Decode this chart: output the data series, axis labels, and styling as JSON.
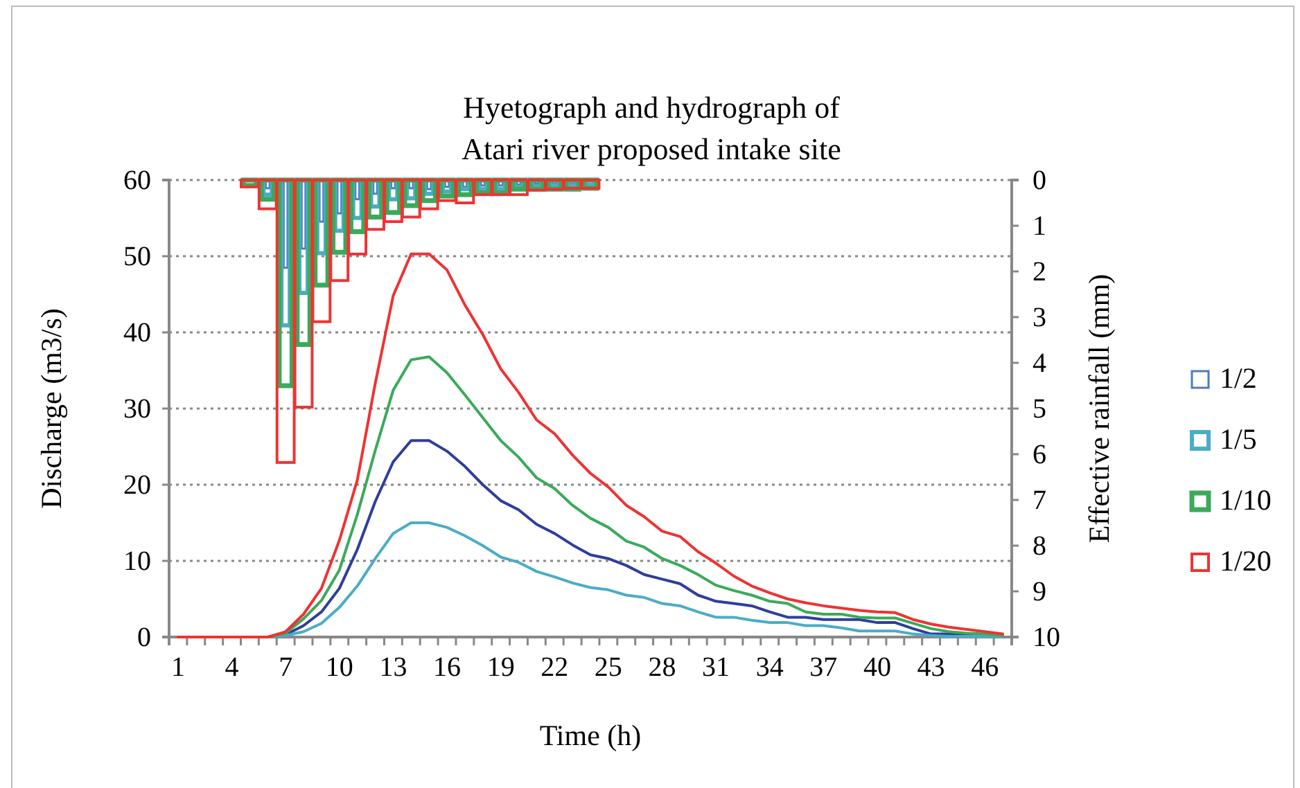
{
  "chart_data": {
    "type": "line",
    "title": "Hyetograph and hydrograph of\nAtari river proposed intake site",
    "xlabel": "Time (h)",
    "ylabel": "Discharge (m3/s)",
    "y2label": "Effective rainfall (mm)",
    "categories": [
      "1",
      null,
      null,
      "4",
      null,
      null,
      "7",
      null,
      null,
      "10",
      null,
      null,
      "13",
      null,
      null,
      "16",
      null,
      null,
      "19",
      null,
      null,
      "22",
      null,
      null,
      "25",
      null,
      null,
      "28",
      null,
      null,
      "31",
      null,
      null,
      "34",
      null,
      null,
      "37",
      null,
      null,
      "40",
      null,
      null,
      "43",
      null,
      null,
      "46",
      null
    ],
    "ylim": [
      0,
      60
    ],
    "yticks": [
      0,
      10,
      20,
      30,
      40,
      50,
      60
    ],
    "y2lim": [
      10,
      0
    ],
    "y2ticks": [
      0,
      1,
      2,
      3,
      4,
      5,
      6,
      7,
      8,
      9,
      10
    ],
    "grid": "y",
    "legend": "right",
    "marker": "none",
    "line_style": "solid",
    "series": [
      {
        "type": "bar",
        "axis": "y2",
        "name": "1/2",
        "color": "#4f7bbf",
        "values": [
          null,
          null,
          null,
          null,
          null,
          0.18,
          1.92,
          1.5,
          0.91,
          0.73,
          0.42,
          0.3,
          0.18,
          0.18,
          0.2,
          0.15,
          0.15,
          0.12,
          0.12,
          0.1,
          0.08,
          0.08,
          0.08,
          null,
          null,
          null,
          null,
          null,
          null,
          null,
          null,
          null,
          null,
          null,
          null,
          null,
          null,
          null,
          null,
          null,
          null,
          null,
          null,
          null,
          null,
          null,
          null
        ]
      },
      {
        "type": "bar",
        "axis": "y2",
        "name": "1/5",
        "color": "#4bacc6",
        "values": [
          null,
          null,
          null,
          null,
          null,
          0.32,
          3.18,
          2.47,
          1.6,
          1.11,
          0.83,
          0.58,
          0.42,
          0.4,
          0.3,
          0.25,
          0.2,
          0.2,
          0.2,
          0.15,
          0.15,
          0.12,
          0.12,
          0.1,
          null,
          null,
          null,
          null,
          null,
          null,
          null,
          null,
          null,
          null,
          null,
          null,
          null,
          null,
          null,
          null,
          null,
          null,
          null,
          null,
          null,
          null,
          null
        ]
      },
      {
        "type": "bar",
        "axis": "y2",
        "name": "1/10",
        "color": "#3aaa5a",
        "values": [
          null,
          null,
          null,
          null,
          0.12,
          0.42,
          4.5,
          3.6,
          2.3,
          1.58,
          1.13,
          0.81,
          0.71,
          0.56,
          0.45,
          0.35,
          0.32,
          0.28,
          0.28,
          0.2,
          0.2,
          0.2,
          0.2,
          0.18,
          null,
          null,
          null,
          null,
          null,
          null,
          null,
          null,
          null,
          null,
          null,
          null,
          null,
          null,
          null,
          null,
          null,
          null,
          null,
          null,
          null,
          null,
          null
        ]
      },
      {
        "type": "bar",
        "axis": "y2",
        "name": "1/20",
        "color": "#ee3333",
        "values": [
          null,
          null,
          null,
          null,
          0.15,
          0.63,
          6.18,
          4.97,
          3.1,
          2.2,
          1.62,
          1.08,
          0.91,
          0.81,
          0.63,
          0.45,
          0.5,
          0.32,
          0.32,
          0.32,
          0.22,
          0.2,
          0.18,
          0.18,
          null,
          null,
          null,
          null,
          null,
          null,
          null,
          null,
          null,
          null,
          null,
          null,
          null,
          null,
          null,
          null,
          null,
          null,
          null,
          null,
          null,
          null,
          null
        ]
      },
      {
        "color": "#2e3e9c",
        "values": [
          null,
          null,
          null,
          null,
          null,
          0,
          0.3,
          1.5,
          3.3,
          6.4,
          11.5,
          17.8,
          23,
          25.8,
          25.8,
          24.4,
          22.4,
          20,
          17.9,
          16.7,
          14.8,
          13.6,
          12.1,
          10.8,
          10.3,
          9.4,
          8.2,
          7.6,
          7,
          5.5,
          4.7,
          4.4,
          4.1,
          3.3,
          2.6,
          2.6,
          2.3,
          2.3,
          2.3,
          1.9,
          1.9,
          1.1,
          0.4,
          0.4,
          0.2,
          0.1,
          0.1
        ]
      },
      {
        "color": "#4bacc6",
        "values": [
          null,
          null,
          null,
          null,
          null,
          0,
          0.2,
          0.7,
          1.8,
          3.9,
          6.7,
          10.3,
          13.6,
          15,
          15,
          14.4,
          13.3,
          12,
          10.5,
          9.8,
          8.6,
          7.9,
          7.1,
          6.5,
          6.2,
          5.5,
          5.2,
          4.4,
          4.1,
          3.3,
          2.6,
          2.6,
          2.2,
          1.9,
          1.9,
          1.5,
          1.5,
          1.2,
          0.8,
          0.8,
          0.8,
          0.4,
          0.2,
          0.1,
          0.1,
          0.1,
          0.1
        ]
      },
      {
        "color": "#3aaa5a",
        "values": [
          null,
          null,
          null,
          null,
          null,
          0,
          0.5,
          2.4,
          4.8,
          8.8,
          16.1,
          24.5,
          32.4,
          36.4,
          36.8,
          34.7,
          31.8,
          28.8,
          25.8,
          23.6,
          20.9,
          19.5,
          17.3,
          15.6,
          14.4,
          12.6,
          11.8,
          10.3,
          9.4,
          8.2,
          6.8,
          6.1,
          5.5,
          4.7,
          4.4,
          3.3,
          3,
          3,
          2.6,
          2.5,
          2.5,
          1.8,
          1.1,
          0.7,
          0.5,
          0.4,
          0.2
        ]
      },
      {
        "color": "#ee3333",
        "values": [
          0,
          0,
          0,
          0,
          0,
          0,
          0.7,
          3,
          6.4,
          12.7,
          20.6,
          33.3,
          44.8,
          50.3,
          50.3,
          48.2,
          43.6,
          39.7,
          35.2,
          32.1,
          28.5,
          26.7,
          23.9,
          21.5,
          19.7,
          17.3,
          15.8,
          13.9,
          13.2,
          11.2,
          9.7,
          8,
          6.7,
          5.8,
          5,
          4.5,
          4.1,
          3.8,
          3.5,
          3.3,
          3.2,
          2.3,
          1.7,
          1.3,
          1,
          0.7,
          0.4
        ]
      }
    ]
  }
}
